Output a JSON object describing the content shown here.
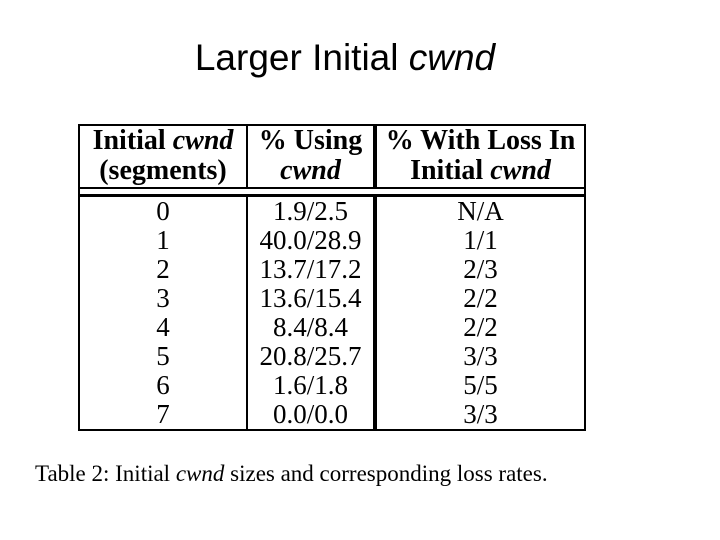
{
  "slide": {
    "title": {
      "text": "Larger Initial",
      "italic": "cwnd"
    },
    "table": {
      "headers": {
        "col1": {
          "line1_pre": "Initial",
          "line1_italic": "cwnd",
          "line2": "(segments)"
        },
        "col2": {
          "line1": "% Using",
          "line2_italic": "cwnd"
        },
        "col3": {
          "line1": "% With Loss In",
          "line2_pre": "Initial",
          "line2_italic": "cwnd"
        }
      },
      "rows": [
        [
          "0",
          "1.9/2.5",
          "N/A"
        ],
        [
          "1",
          "40.0/28.9",
          "1/1"
        ],
        [
          "2",
          "13.7/17.2",
          "2/3"
        ],
        [
          "3",
          "13.6/15.4",
          "2/2"
        ],
        [
          "4",
          "8.4/8.4",
          "2/2"
        ],
        [
          "5",
          "20.8/25.7",
          "3/3"
        ],
        [
          "6",
          "1.6/1.8",
          "5/5"
        ],
        [
          "7",
          "0.0/0.0",
          "3/3"
        ]
      ]
    },
    "caption": {
      "pre": "Table 2: Initial",
      "italic": "cwnd",
      "post": "sizes and corresponding loss rates."
    },
    "colors": {
      "background": "#ffffff",
      "text": "#000000",
      "border": "#000000"
    }
  }
}
